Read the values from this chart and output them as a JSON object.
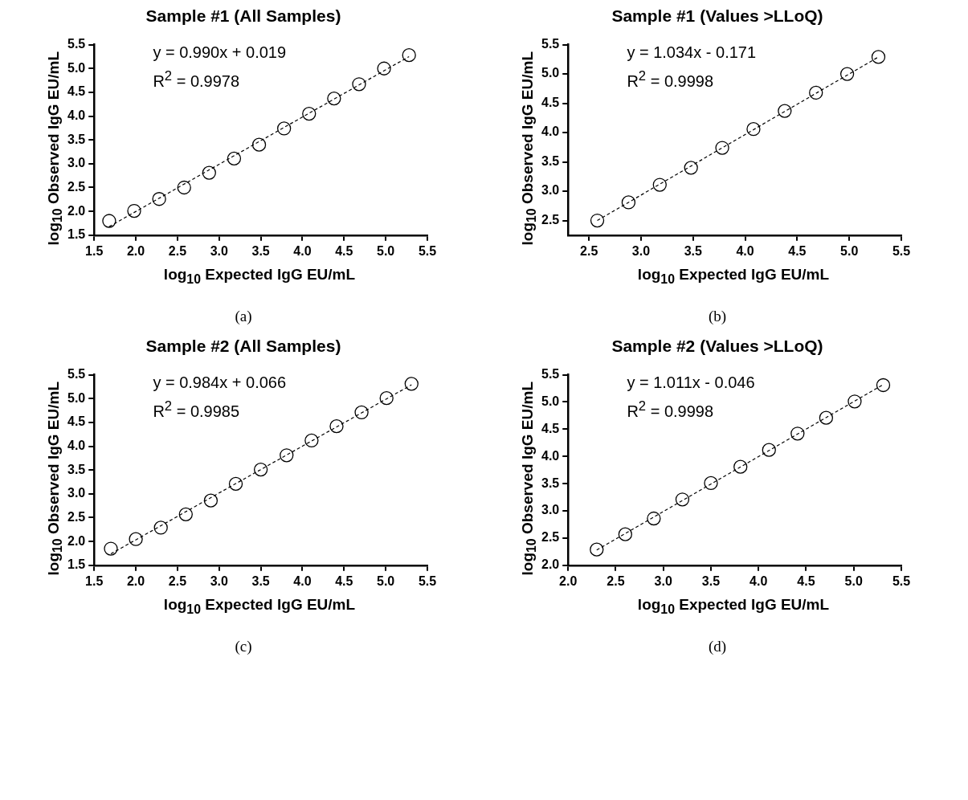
{
  "chart_data": [
    {
      "type": "scatter",
      "title": "Sample #1 (All Samples)",
      "xlabel": "log$_{10}$ Expected IgG EU/mL",
      "ylabel": "log$_{10}$ Observed IgG EU/mL",
      "xlim": [
        1.5,
        5.5
      ],
      "xticks": [
        1.5,
        {
          "value": 2,
          "label": "2.0"
        },
        2.5,
        {
          "value": 3,
          "label": "3.0"
        },
        3.5,
        {
          "value": 4,
          "label": "4.0"
        },
        4.5,
        {
          "value": 5,
          "label": "5.0"
        },
        5.5
      ],
      "ylim": [
        1.5,
        5.5
      ],
      "yticks": [
        1.5,
        {
          "value": 2,
          "label": "2.0"
        },
        2.5,
        {
          "value": 3,
          "label": "3.0"
        },
        3.5,
        {
          "value": 4,
          "label": "4.0"
        },
        4.5,
        {
          "value": 5,
          "label": "5.0"
        },
        5.5
      ],
      "grid": false,
      "legend": false,
      "annotations": [
        "y = 0.990x + 0.019",
        "R$^{2}$ = 0.9978",
        "(a)"
      ],
      "series": [
        {
          "type": "scatter",
          "marker": "circle",
          "color": "#000000",
          "x": [
            1.68,
            1.98,
            2.28,
            2.58,
            2.88,
            3.18,
            3.48,
            3.78,
            4.08,
            4.38,
            4.68,
            4.98,
            5.28
          ],
          "values": [
            1.8,
            2.01,
            2.26,
            2.5,
            2.81,
            3.11,
            3.4,
            3.74,
            4.05,
            4.37,
            4.67,
            5.0,
            5.28
          ]
        },
        {
          "type": "line",
          "line_style": "dashed",
          "color": "#000000",
          "x": [
            1.68,
            5.28
          ],
          "values": [
            1.68,
            5.25
          ]
        }
      ]
    },
    {
      "type": "scatter",
      "title": "Sample #1 (Values >LLoQ)",
      "xlabel": "log$_{10}$ Expected IgG EU/mL",
      "ylabel": "log$_{10}$ Observed IgG EU/mL",
      "xlim": [
        2.3,
        5.5
      ],
      "xticks": [
        2.5,
        {
          "value": 3,
          "label": "3.0"
        },
        3.5,
        {
          "value": 4,
          "label": "4.0"
        },
        4.5,
        {
          "value": 5,
          "label": "5.0"
        },
        5.5
      ],
      "ylim": [
        2.25,
        5.5
      ],
      "yticks": [
        2.5,
        {
          "value": 3,
          "label": "3.0"
        },
        3.5,
        {
          "value": 4,
          "label": "4.0"
        },
        4.5,
        {
          "value": 5,
          "label": "5.0"
        },
        5.5
      ],
      "grid": false,
      "legend": false,
      "annotations": [
        "y = 1.034x - 0.171",
        "R$^{2}$ = 0.9998",
        "(b)"
      ],
      "series": [
        {
          "type": "scatter",
          "marker": "circle",
          "color": "#000000",
          "x": [
            2.58,
            2.88,
            3.18,
            3.48,
            3.78,
            4.08,
            4.38,
            4.68,
            4.98,
            5.28
          ],
          "values": [
            2.5,
            2.81,
            3.11,
            3.4,
            3.74,
            4.06,
            4.37,
            4.68,
            5.0,
            5.29
          ]
        },
        {
          "type": "line",
          "line_style": "dashed",
          "color": "#000000",
          "x": [
            2.58,
            5.28
          ],
          "values": [
            2.5,
            5.29
          ]
        }
      ]
    },
    {
      "type": "scatter",
      "title": "Sample #2 (All Samples)",
      "xlabel": "log$_{10}$ Expected IgG EU/mL",
      "ylabel": "log$_{10}$ Observed IgG EU/mL",
      "xlim": [
        1.5,
        5.5
      ],
      "xticks": [
        1.5,
        {
          "value": 2,
          "label": "2.0"
        },
        2.5,
        {
          "value": 3,
          "label": "3.0"
        },
        3.5,
        {
          "value": 4,
          "label": "4.0"
        },
        4.5,
        {
          "value": 5,
          "label": "5.0"
        },
        5.5
      ],
      "ylim": [
        1.5,
        5.5
      ],
      "yticks": [
        1.5,
        {
          "value": 2,
          "label": "2.0"
        },
        2.5,
        {
          "value": 3,
          "label": "3.0"
        },
        3.5,
        {
          "value": 4,
          "label": "4.0"
        },
        4.5,
        {
          "value": 5,
          "label": "5.0"
        },
        5.5
      ],
      "grid": false,
      "legend": false,
      "annotations": [
        "y = 0.984x + 0.066",
        "R$^{2}$ = 0.9985",
        "(c)"
      ],
      "series": [
        {
          "type": "scatter",
          "marker": "circle",
          "color": "#000000",
          "x": [
            1.7,
            2.0,
            2.3,
            2.6,
            2.9,
            3.2,
            3.5,
            3.81,
            4.11,
            4.41,
            4.71,
            5.01,
            5.31
          ],
          "values": [
            1.85,
            2.05,
            2.29,
            2.57,
            2.86,
            3.21,
            3.51,
            3.81,
            4.12,
            4.42,
            4.71,
            5.01,
            5.31
          ]
        },
        {
          "type": "line",
          "line_style": "dashed",
          "color": "#000000",
          "x": [
            1.7,
            5.31
          ],
          "values": [
            1.74,
            5.29
          ]
        }
      ]
    },
    {
      "type": "scatter",
      "title": "Sample #2 (Values >LLoQ)",
      "xlabel": "log$_{10}$ Expected IgG EU/mL",
      "ylabel": "log$_{10}$ Observed IgG EU/mL",
      "xlim": [
        2.0,
        5.5
      ],
      "xticks": [
        {
          "value": 2,
          "label": "2.0"
        },
        2.5,
        {
          "value": 3,
          "label": "3.0"
        },
        3.5,
        {
          "value": 4,
          "label": "4.0"
        },
        4.5,
        {
          "value": 5,
          "label": "5.0"
        },
        5.5
      ],
      "ylim": [
        2.0,
        5.5
      ],
      "yticks": [
        {
          "value": 2,
          "label": "2.0"
        },
        2.5,
        {
          "value": 3,
          "label": "3.0"
        },
        3.5,
        {
          "value": 4,
          "label": "4.0"
        },
        4.5,
        {
          "value": 5,
          "label": "5.0"
        },
        5.5
      ],
      "grid": false,
      "legend": false,
      "annotations": [
        "y = 1.011x - 0.046",
        "R$^{2}$ = 0.9998",
        "(d)"
      ],
      "series": [
        {
          "type": "scatter",
          "marker": "circle",
          "color": "#000000",
          "x": [
            2.3,
            2.6,
            2.9,
            3.2,
            3.5,
            3.81,
            4.11,
            4.41,
            4.71,
            5.01,
            5.31
          ],
          "values": [
            2.29,
            2.57,
            2.86,
            3.21,
            3.51,
            3.81,
            4.12,
            4.42,
            4.71,
            5.01,
            5.31
          ]
        },
        {
          "type": "line",
          "line_style": "dashed",
          "color": "#000000",
          "x": [
            2.3,
            5.31
          ],
          "values": [
            2.28,
            5.32
          ]
        }
      ]
    }
  ]
}
